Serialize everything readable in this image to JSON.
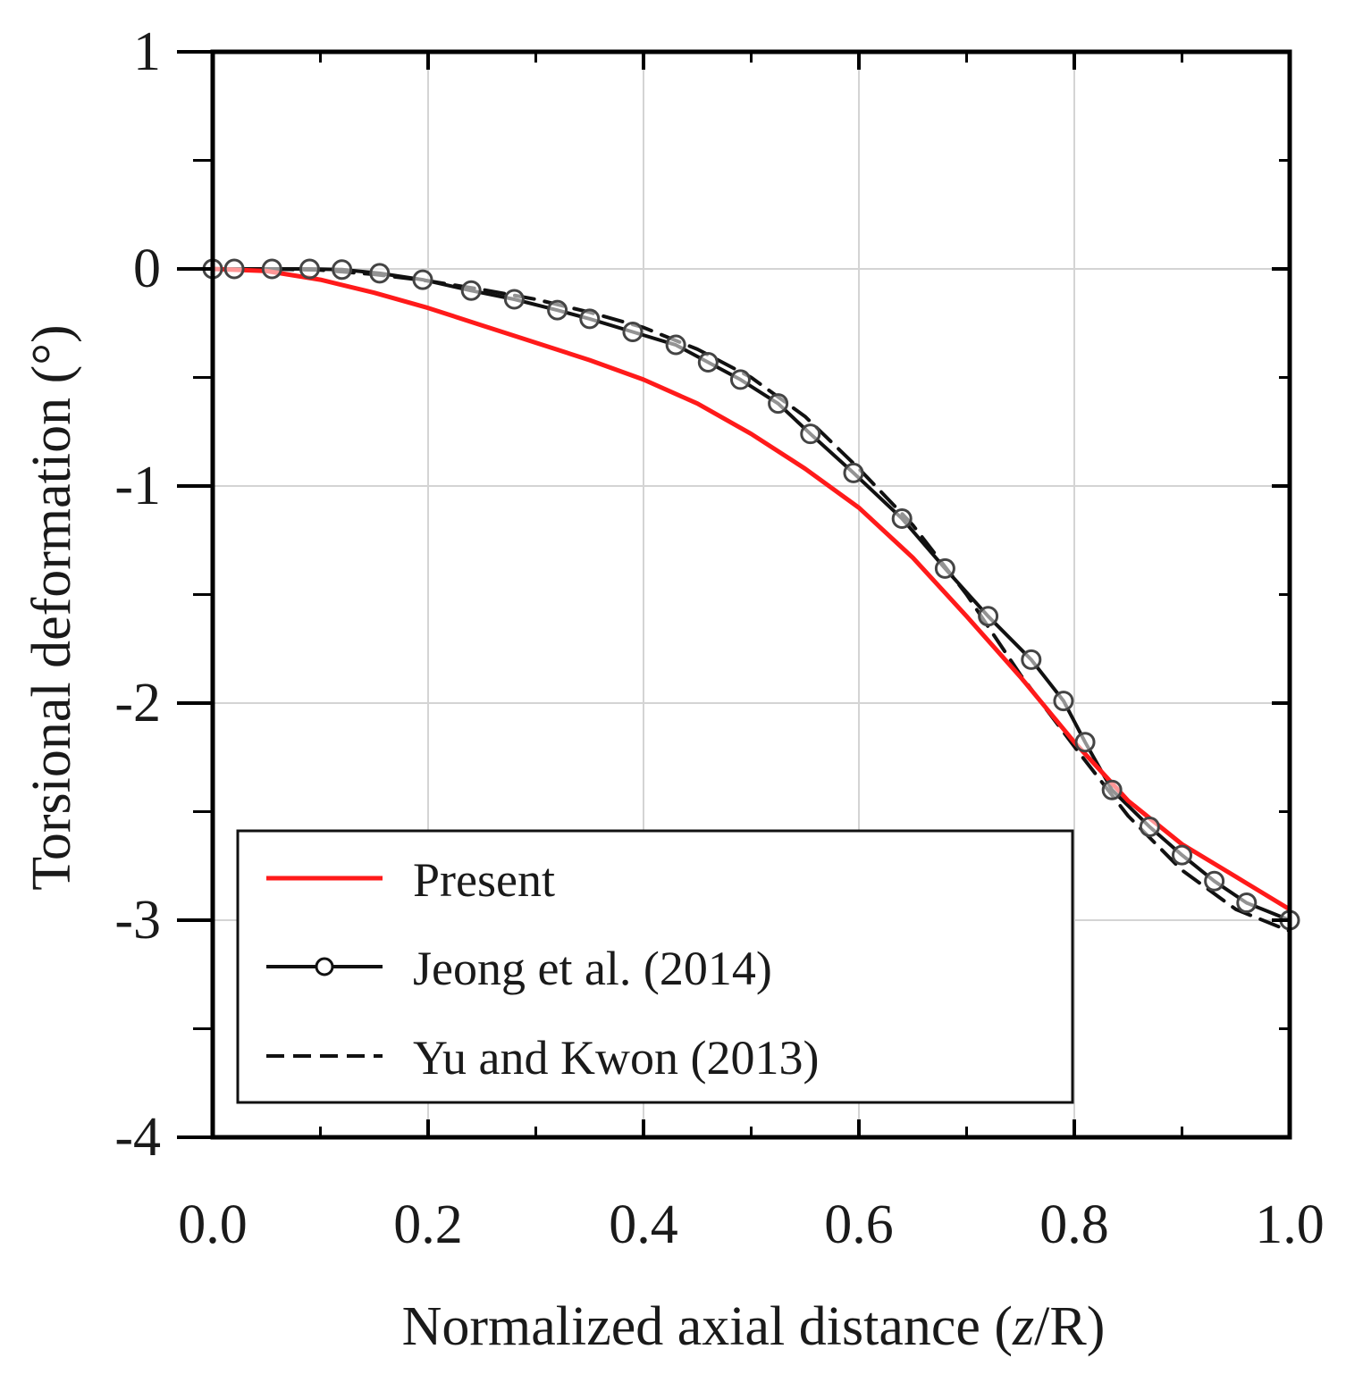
{
  "chart_data": {
    "type": "line",
    "xlabel_main": "Normalized axial distance (",
    "xlabel_var": "z",
    "xlabel_tail": "/R)",
    "ylabel": "Torsional deformation (°)",
    "xlim": [
      0,
      1
    ],
    "ylim": [
      -4,
      1
    ],
    "x_ticks": [
      0.0,
      0.2,
      0.4,
      0.6,
      0.8,
      1.0
    ],
    "x_tick_labels": [
      "0.0",
      "0.2",
      "0.4",
      "0.6",
      "0.8",
      "1.0"
    ],
    "x_minor_ticks": [
      0.1,
      0.3,
      0.5,
      0.7,
      0.9
    ],
    "y_ticks": [
      1,
      0,
      -1,
      -2,
      -3,
      -4
    ],
    "y_tick_labels": [
      "1",
      "0",
      "-1",
      "-2",
      "-3",
      "-4"
    ],
    "y_minor_ticks": [
      0.5,
      -0.5,
      -1.5,
      -2.5,
      -3.5
    ],
    "grid": true,
    "legend_position": "bottom-left",
    "series": [
      {
        "name": "Present",
        "style": "solid",
        "color": "#ff1a1a",
        "marker": "none",
        "x": [
          0.0,
          0.05,
          0.1,
          0.15,
          0.2,
          0.25,
          0.3,
          0.35,
          0.4,
          0.45,
          0.5,
          0.55,
          0.6,
          0.65,
          0.7,
          0.75,
          0.8,
          0.85,
          0.9,
          0.95,
          1.0
        ],
        "y": [
          0.0,
          -0.01,
          -0.05,
          -0.11,
          -0.18,
          -0.26,
          -0.34,
          -0.42,
          -0.51,
          -0.62,
          -0.76,
          -0.92,
          -1.1,
          -1.33,
          -1.6,
          -1.88,
          -2.18,
          -2.45,
          -2.65,
          -2.8,
          -2.95
        ]
      },
      {
        "name": "Jeong et al. (2014)",
        "style": "solid",
        "color": "#111111",
        "marker": "circle",
        "x": [
          0.0,
          0.02,
          0.055,
          0.09,
          0.12,
          0.155,
          0.195,
          0.24,
          0.28,
          0.32,
          0.35,
          0.39,
          0.43,
          0.46,
          0.49,
          0.525,
          0.555,
          0.595,
          0.64,
          0.68,
          0.72,
          0.76,
          0.79,
          0.81,
          0.835,
          0.87,
          0.9,
          0.93,
          0.96,
          1.0
        ],
        "y": [
          0.0,
          0.0,
          0.0,
          0.0,
          -0.003,
          -0.02,
          -0.05,
          -0.1,
          -0.14,
          -0.19,
          -0.23,
          -0.29,
          -0.35,
          -0.43,
          -0.51,
          -0.62,
          -0.76,
          -0.94,
          -1.15,
          -1.38,
          -1.6,
          -1.8,
          -1.99,
          -2.18,
          -2.4,
          -2.57,
          -2.7,
          -2.82,
          -2.92,
          -3.0
        ]
      },
      {
        "name": "Yu and Kwon (2013)",
        "style": "dashed",
        "color": "#111111",
        "marker": "none",
        "x": [
          0.0,
          0.05,
          0.1,
          0.15,
          0.2,
          0.25,
          0.3,
          0.35,
          0.4,
          0.45,
          0.5,
          0.55,
          0.6,
          0.65,
          0.7,
          0.75,
          0.8,
          0.85,
          0.9,
          0.95,
          1.0
        ],
        "y": [
          0.0,
          0.0,
          -0.005,
          -0.025,
          -0.055,
          -0.095,
          -0.14,
          -0.2,
          -0.27,
          -0.37,
          -0.5,
          -0.68,
          -0.92,
          -1.18,
          -1.5,
          -1.87,
          -2.2,
          -2.52,
          -2.77,
          -2.95,
          -3.05
        ]
      }
    ]
  }
}
